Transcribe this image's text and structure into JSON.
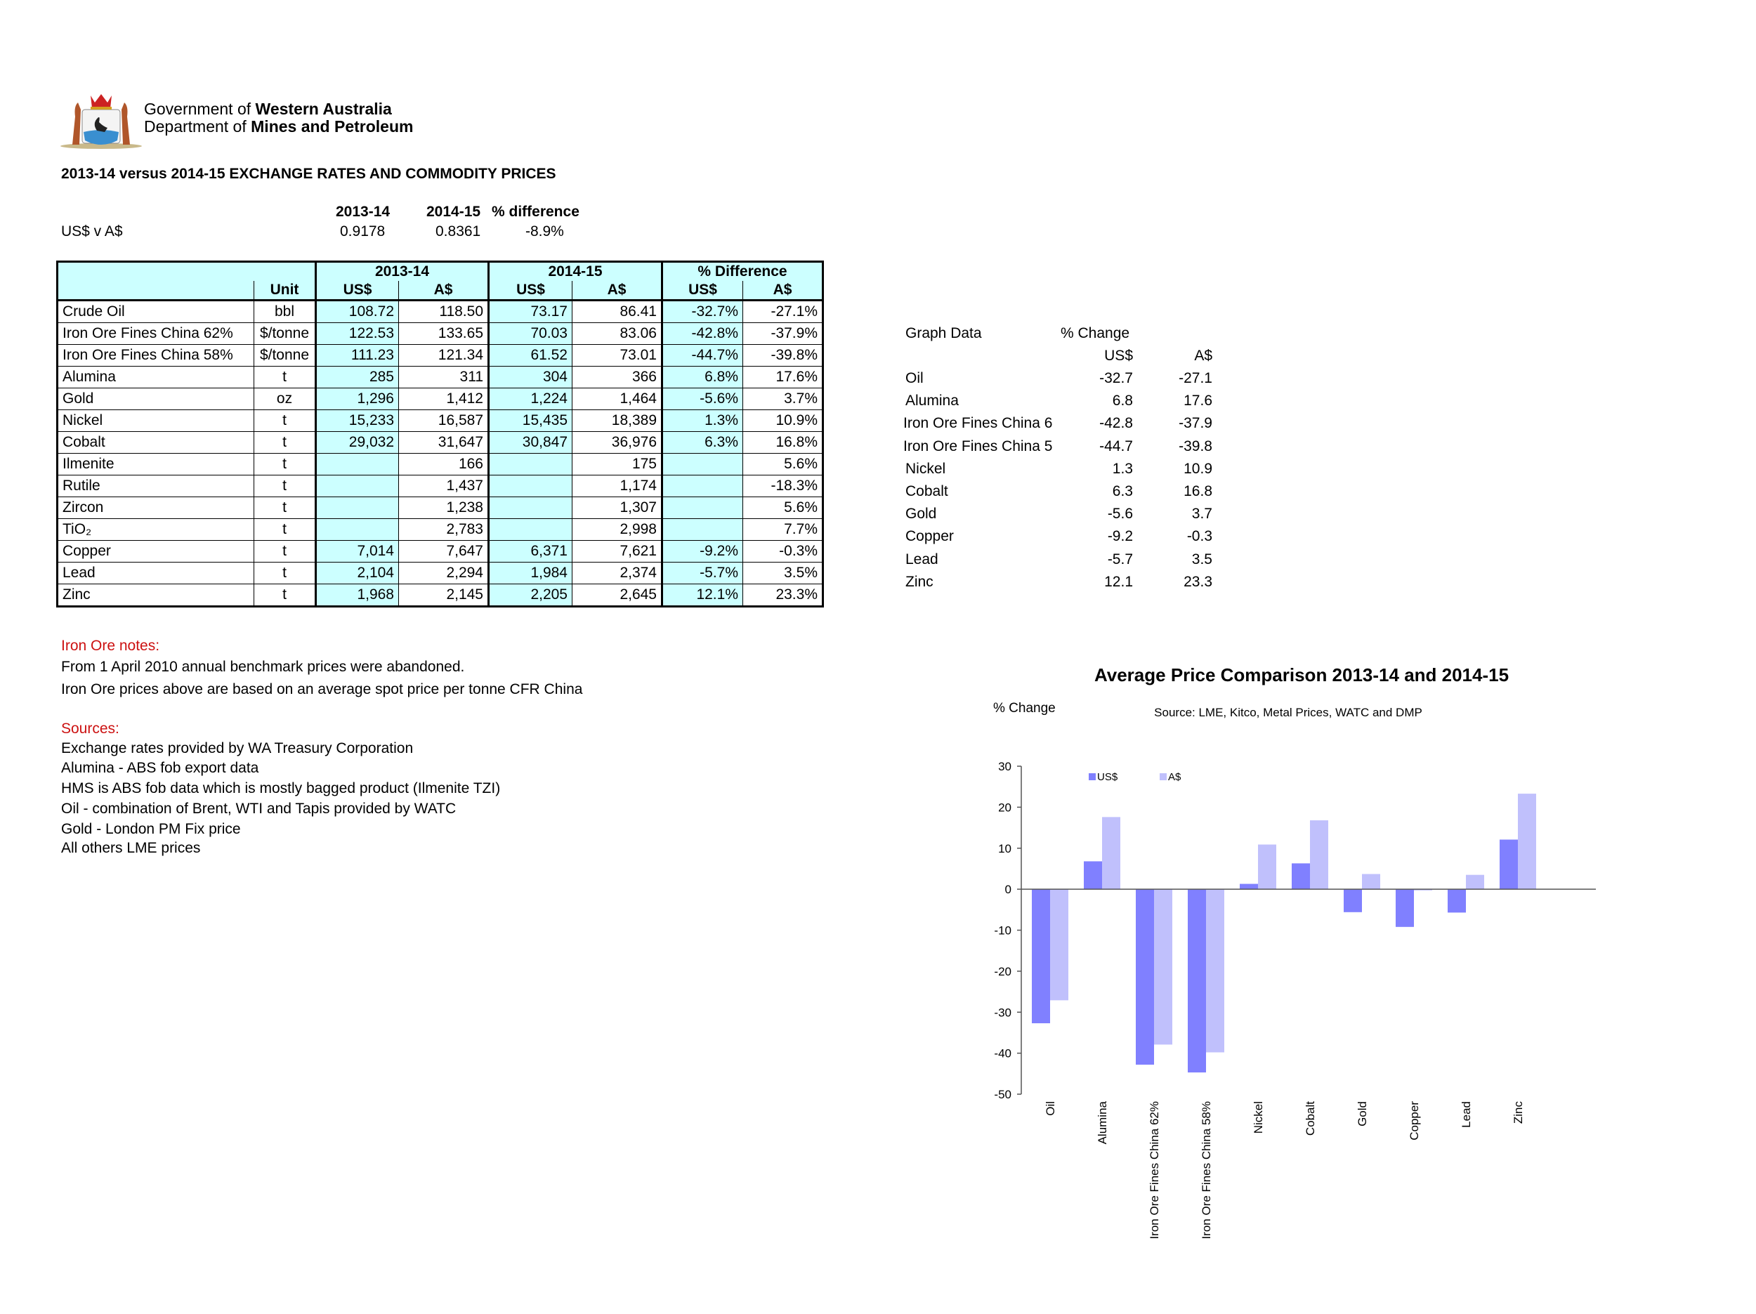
{
  "header": {
    "logo_line1_a": "Government of ",
    "logo_line1_b": "Western Australia",
    "logo_line2_a": "Department of ",
    "logo_line2_b": "Mines and Petroleum",
    "title": "2013-14 versus 2014-15 EXCHANGE RATES AND COMMODITY PRICES"
  },
  "exchange": {
    "headers": [
      "2013-14",
      "2014-15",
      "% difference"
    ],
    "label": "US$ v A$",
    "values": [
      "0.9178",
      "0.8361",
      "-8.9%"
    ]
  },
  "table": {
    "group_headers": [
      "2013-14",
      "2014-15",
      "% Difference"
    ],
    "sub_headers": [
      "Unit",
      "US$",
      "A$",
      "US$",
      "A$",
      "US$",
      "A$"
    ],
    "rows": [
      [
        "Crude Oil",
        "bbl",
        "108.72",
        "118.50",
        "73.17",
        "86.41",
        "-32.7%",
        "-27.1%"
      ],
      [
        "Iron Ore Fines China 62%",
        "$/tonne",
        "122.53",
        "133.65",
        "70.03",
        "83.06",
        "-42.8%",
        "-37.9%"
      ],
      [
        "Iron Ore Fines China 58%",
        "$/tonne",
        "111.23",
        "121.34",
        "61.52",
        "73.01",
        "-44.7%",
        "-39.8%"
      ],
      [
        "Alumina",
        "t",
        "285",
        "311",
        "304",
        "366",
        "6.8%",
        "17.6%"
      ],
      [
        "Gold",
        "oz",
        "1,296",
        "1,412",
        "1,224",
        "1,464",
        "-5.6%",
        "3.7%"
      ],
      [
        "Nickel",
        "t",
        "15,233",
        "16,587",
        "15,435",
        "18,389",
        "1.3%",
        "10.9%"
      ],
      [
        "Cobalt",
        "t",
        "29,032",
        "31,647",
        "30,847",
        "36,976",
        "6.3%",
        "16.8%"
      ],
      [
        "Ilmenite",
        "t",
        "",
        "166",
        "",
        "175",
        "",
        "5.6%"
      ],
      [
        "Rutile",
        "t",
        "",
        "1,437",
        "",
        "1,174",
        "",
        "-18.3%"
      ],
      [
        "Zircon",
        "t",
        "",
        "1,238",
        "",
        "1,307",
        "",
        "5.6%"
      ],
      [
        "TiO₂",
        "t",
        "",
        "2,783",
        "",
        "2,998",
        "",
        "7.7%"
      ],
      [
        "Copper",
        "t",
        "7,014",
        "7,647",
        "6,371",
        "7,621",
        "-9.2%",
        "-0.3%"
      ],
      [
        "Lead",
        "t",
        "2,104",
        "2,294",
        "1,984",
        "2,374",
        "-5.7%",
        "3.5%"
      ],
      [
        "Zinc",
        "t",
        "1,968",
        "2,145",
        "2,205",
        "2,645",
        "12.1%",
        "23.3%"
      ]
    ]
  },
  "graph_data": {
    "label": "Graph Data",
    "pct_label": "% Change",
    "col_us": "US$",
    "col_a": "A$",
    "rows": [
      [
        "Oil",
        "-32.7",
        "-27.1"
      ],
      [
        "Alumina",
        "6.8",
        "17.6"
      ],
      [
        "Iron Ore Fines China 6",
        "-42.8",
        "-37.9"
      ],
      [
        "Iron Ore Fines China 5",
        "-44.7",
        "-39.8"
      ],
      [
        "Nickel",
        "1.3",
        "10.9"
      ],
      [
        "Cobalt",
        "6.3",
        "16.8"
      ],
      [
        "Gold",
        "-5.6",
        "3.7"
      ],
      [
        "Copper",
        "-9.2",
        "-0.3"
      ],
      [
        "Lead",
        "-5.7",
        "3.5"
      ],
      [
        "Zinc",
        "12.1",
        "23.3"
      ]
    ]
  },
  "notes": {
    "iron_title": "Iron Ore notes:",
    "iron_lines": [
      "From 1 April 2010 annual benchmark prices were abandoned.",
      "Iron Ore prices above are based on an average spot price per tonne CFR China"
    ],
    "sources_title": "Sources:",
    "sources_lines": [
      "Exchange rates provided by WA Treasury Corporation",
      "Alumina  - ABS fob export data",
      "HMS is ABS fob data which is mostly bagged product (Ilmenite TZI)",
      "Oil - combination of Brent, WTI and Tapis provided by WATC",
      "Gold - London PM Fix price",
      "All others LME prices"
    ]
  },
  "chart_data": {
    "type": "bar",
    "title": "Average Price Comparison 2013-14 and 2014-15",
    "subtitle": "Source: LME, Kitco, Metal Prices, WATC and DMP",
    "ylabel": "% Change",
    "xlabel": "",
    "ylim": [
      -50,
      30
    ],
    "yticks": [
      30,
      20,
      10,
      0,
      -10,
      -20,
      -30,
      -40,
      -50
    ],
    "grid": false,
    "legend": "top-left",
    "categories": [
      "Oil",
      "Alumina",
      "Iron Ore Fines China 62%",
      "Iron Ore Fines China 58%",
      "Nickel",
      "Cobalt",
      "Gold",
      "Copper",
      "Lead",
      "Zinc"
    ],
    "series": [
      {
        "name": "US$",
        "color": "#8080ff",
        "values": [
          -32.7,
          6.8,
          -42.8,
          -44.7,
          1.3,
          6.3,
          -5.6,
          -9.2,
          -5.7,
          12.1
        ]
      },
      {
        "name": "A$",
        "color": "#c0c0fc",
        "values": [
          -27.1,
          17.6,
          -37.9,
          -39.8,
          10.9,
          16.8,
          3.7,
          -0.3,
          3.5,
          23.3
        ]
      }
    ]
  }
}
